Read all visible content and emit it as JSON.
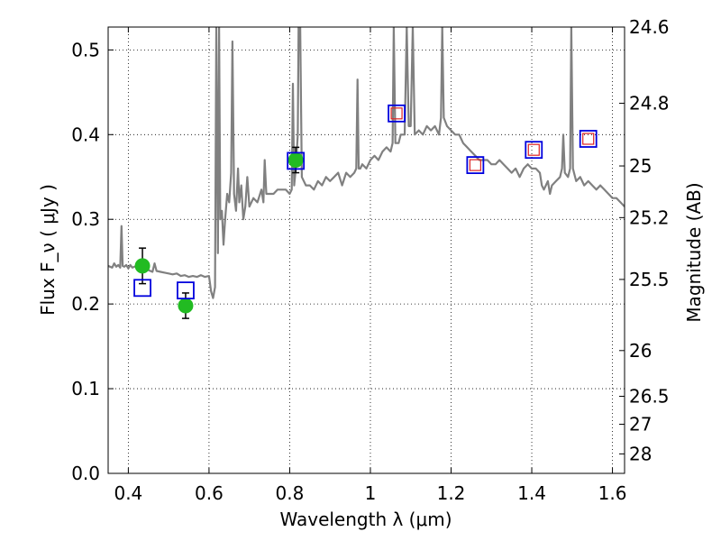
{
  "chart_data": {
    "type": "scatter",
    "title": "",
    "xlabel": "Wavelength  λ (μm)",
    "ylabel": "Flux  F_ν  ( μJy )",
    "ylabel_right": "Magnitude (AB)",
    "xlim": [
      0.35,
      1.63
    ],
    "ylim": [
      0.0,
      0.527
    ],
    "grid": true,
    "x_ticks": [
      0.4,
      0.6,
      0.8,
      1.0,
      1.2,
      1.4,
      1.6
    ],
    "x_tick_labels": [
      "0.4",
      "0.6",
      "0.8",
      "1",
      "1.2",
      "1.4",
      "1.6"
    ],
    "y_ticks": [
      0.0,
      0.1,
      0.2,
      0.3,
      0.4,
      0.5
    ],
    "y_tick_labels": [
      "0.0",
      "0.1",
      "0.2",
      "0.3",
      "0.4",
      "0.5"
    ],
    "mag_ticks": [
      {
        "label": "24.6",
        "flux": 0.527
      },
      {
        "label": "24.8",
        "flux": 0.437
      },
      {
        "label": "25",
        "flux": 0.363
      },
      {
        "label": "25.2",
        "flux": 0.302
      },
      {
        "label": "25.5",
        "flux": 0.229
      },
      {
        "label": "26",
        "flux": 0.145
      },
      {
        "label": "26.5",
        "flux": 0.091
      },
      {
        "label": "27",
        "flux": 0.058
      },
      {
        "label": "28",
        "flux": 0.023
      }
    ],
    "colors": {
      "model": "#808080",
      "observed": "#22bb22",
      "model_box": "#0000dd",
      "model_box_inner": "#dd2222",
      "errorbar": "#000000"
    },
    "series": [
      {
        "kind": "model_spectrum",
        "points": [
          [
            0.35,
            0.245
          ],
          [
            0.36,
            0.243
          ],
          [
            0.365,
            0.248
          ],
          [
            0.37,
            0.244
          ],
          [
            0.375,
            0.246
          ],
          [
            0.38,
            0.243
          ],
          [
            0.383,
            0.292
          ],
          [
            0.386,
            0.245
          ],
          [
            0.39,
            0.244
          ],
          [
            0.395,
            0.246
          ],
          [
            0.4,
            0.242
          ],
          [
            0.405,
            0.246
          ],
          [
            0.41,
            0.243
          ],
          [
            0.42,
            0.245
          ],
          [
            0.43,
            0.243
          ],
          [
            0.44,
            0.241
          ],
          [
            0.445,
            0.249
          ],
          [
            0.45,
            0.24
          ],
          [
            0.46,
            0.238
          ],
          [
            0.465,
            0.248
          ],
          [
            0.47,
            0.239
          ],
          [
            0.48,
            0.238
          ],
          [
            0.49,
            0.237
          ],
          [
            0.5,
            0.236
          ],
          [
            0.51,
            0.235
          ],
          [
            0.52,
            0.236
          ],
          [
            0.53,
            0.233
          ],
          [
            0.54,
            0.234
          ],
          [
            0.55,
            0.232
          ],
          [
            0.56,
            0.233
          ],
          [
            0.57,
            0.232
          ],
          [
            0.58,
            0.234
          ],
          [
            0.59,
            0.232
          ],
          [
            0.6,
            0.233
          ],
          [
            0.605,
            0.215
          ],
          [
            0.61,
            0.207
          ],
          [
            0.615,
            0.22
          ],
          [
            0.618,
            0.527
          ],
          [
            0.622,
            0.26
          ],
          [
            0.625,
            0.527
          ],
          [
            0.628,
            0.3
          ],
          [
            0.632,
            0.31
          ],
          [
            0.636,
            0.27
          ],
          [
            0.64,
            0.3
          ],
          [
            0.645,
            0.33
          ],
          [
            0.65,
            0.32
          ],
          [
            0.655,
            0.355
          ],
          [
            0.658,
            0.51
          ],
          [
            0.662,
            0.33
          ],
          [
            0.667,
            0.31
          ],
          [
            0.672,
            0.36
          ],
          [
            0.675,
            0.32
          ],
          [
            0.68,
            0.34
          ],
          [
            0.685,
            0.3
          ],
          [
            0.69,
            0.315
          ],
          [
            0.695,
            0.35
          ],
          [
            0.7,
            0.315
          ],
          [
            0.71,
            0.325
          ],
          [
            0.72,
            0.32
          ],
          [
            0.73,
            0.335
          ],
          [
            0.735,
            0.32
          ],
          [
            0.738,
            0.37
          ],
          [
            0.742,
            0.33
          ],
          [
            0.75,
            0.33
          ],
          [
            0.76,
            0.33
          ],
          [
            0.77,
            0.335
          ],
          [
            0.78,
            0.335
          ],
          [
            0.79,
            0.335
          ],
          [
            0.8,
            0.33
          ],
          [
            0.805,
            0.335
          ],
          [
            0.808,
            0.46
          ],
          [
            0.811,
            0.34
          ],
          [
            0.815,
            0.36
          ],
          [
            0.82,
            0.4
          ],
          [
            0.822,
            0.527
          ],
          [
            0.826,
            0.527
          ],
          [
            0.83,
            0.35
          ],
          [
            0.84,
            0.34
          ],
          [
            0.85,
            0.34
          ],
          [
            0.86,
            0.335
          ],
          [
            0.87,
            0.345
          ],
          [
            0.88,
            0.34
          ],
          [
            0.89,
            0.35
          ],
          [
            0.9,
            0.345
          ],
          [
            0.91,
            0.35
          ],
          [
            0.92,
            0.355
          ],
          [
            0.93,
            0.34
          ],
          [
            0.94,
            0.355
          ],
          [
            0.95,
            0.35
          ],
          [
            0.96,
            0.355
          ],
          [
            0.965,
            0.36
          ],
          [
            0.968,
            0.465
          ],
          [
            0.971,
            0.36
          ],
          [
            0.975,
            0.36
          ],
          [
            0.98,
            0.365
          ],
          [
            0.99,
            0.36
          ],
          [
            1.0,
            0.37
          ],
          [
            1.01,
            0.375
          ],
          [
            1.02,
            0.37
          ],
          [
            1.03,
            0.38
          ],
          [
            1.04,
            0.385
          ],
          [
            1.05,
            0.38
          ],
          [
            1.055,
            0.39
          ],
          [
            1.058,
            0.527
          ],
          [
            1.062,
            0.39
          ],
          [
            1.07,
            0.39
          ],
          [
            1.075,
            0.4
          ],
          [
            1.085,
            0.4
          ],
          [
            1.09,
            0.527
          ],
          [
            1.095,
            0.41
          ],
          [
            1.1,
            0.41
          ],
          [
            1.105,
            0.527
          ],
          [
            1.11,
            0.4
          ],
          [
            1.12,
            0.405
          ],
          [
            1.13,
            0.4
          ],
          [
            1.14,
            0.41
          ],
          [
            1.15,
            0.405
          ],
          [
            1.16,
            0.41
          ],
          [
            1.17,
            0.4
          ],
          [
            1.175,
            0.42
          ],
          [
            1.178,
            0.527
          ],
          [
            1.182,
            0.42
          ],
          [
            1.19,
            0.41
          ],
          [
            1.2,
            0.405
          ],
          [
            1.21,
            0.4
          ],
          [
            1.22,
            0.4
          ],
          [
            1.23,
            0.39
          ],
          [
            1.24,
            0.385
          ],
          [
            1.25,
            0.38
          ],
          [
            1.26,
            0.375
          ],
          [
            1.27,
            0.37
          ],
          [
            1.28,
            0.37
          ],
          [
            1.29,
            0.37
          ],
          [
            1.3,
            0.365
          ],
          [
            1.31,
            0.365
          ],
          [
            1.32,
            0.37
          ],
          [
            1.33,
            0.365
          ],
          [
            1.34,
            0.36
          ],
          [
            1.35,
            0.355
          ],
          [
            1.36,
            0.36
          ],
          [
            1.37,
            0.35
          ],
          [
            1.38,
            0.36
          ],
          [
            1.39,
            0.365
          ],
          [
            1.4,
            0.36
          ],
          [
            1.41,
            0.36
          ],
          [
            1.42,
            0.355
          ],
          [
            1.425,
            0.34
          ],
          [
            1.43,
            0.335
          ],
          [
            1.44,
            0.345
          ],
          [
            1.445,
            0.33
          ],
          [
            1.45,
            0.34
          ],
          [
            1.46,
            0.345
          ],
          [
            1.47,
            0.35
          ],
          [
            1.475,
            0.36
          ],
          [
            1.478,
            0.4
          ],
          [
            1.482,
            0.355
          ],
          [
            1.49,
            0.35
          ],
          [
            1.495,
            0.36
          ],
          [
            1.498,
            0.527
          ],
          [
            1.502,
            0.36
          ],
          [
            1.51,
            0.345
          ],
          [
            1.52,
            0.35
          ],
          [
            1.53,
            0.34
          ],
          [
            1.54,
            0.345
          ],
          [
            1.55,
            0.34
          ],
          [
            1.56,
            0.335
          ],
          [
            1.57,
            0.34
          ],
          [
            1.58,
            0.335
          ],
          [
            1.59,
            0.33
          ],
          [
            1.6,
            0.325
          ],
          [
            1.61,
            0.325
          ],
          [
            1.62,
            0.32
          ],
          [
            1.63,
            0.315
          ]
        ]
      },
      {
        "kind": "observed_photometry",
        "points": [
          {
            "x": 0.435,
            "y": 0.245,
            "err": 0.021
          },
          {
            "x": 0.542,
            "y": 0.198,
            "err": 0.015
          },
          {
            "x": 0.815,
            "y": 0.37,
            "err": 0.015
          }
        ]
      },
      {
        "kind": "model_photometry",
        "points": [
          {
            "x": 0.435,
            "y": 0.219,
            "inner": false
          },
          {
            "x": 0.542,
            "y": 0.216,
            "inner": false
          },
          {
            "x": 0.815,
            "y": 0.369,
            "inner": false
          },
          {
            "x": 1.065,
            "y": 0.425,
            "inner": true
          },
          {
            "x": 1.26,
            "y": 0.364,
            "inner": true
          },
          {
            "x": 1.405,
            "y": 0.382,
            "inner": true
          },
          {
            "x": 1.54,
            "y": 0.395,
            "inner": true
          }
        ]
      }
    ]
  }
}
